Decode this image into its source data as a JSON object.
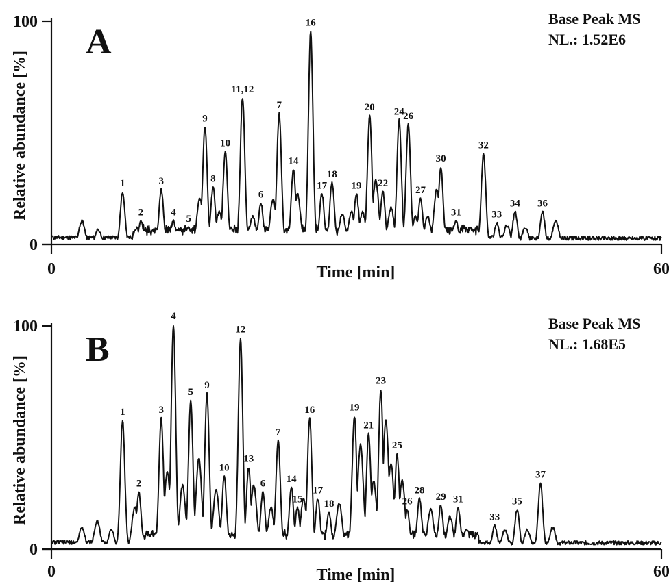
{
  "chart_data": [
    {
      "type": "line",
      "panel": "A",
      "info_lines": [
        "Base Peak MS",
        "NL.: 1.52E6"
      ],
      "xlabel": "Time [min]",
      "ylabel": "Relative abundance [%]",
      "xlim": [
        0,
        60
      ],
      "ylim": [
        0,
        100
      ],
      "x_ticks": [
        "0",
        "60"
      ],
      "y_ticks": [
        "0",
        "100"
      ],
      "grid": false,
      "peaks": [
        {
          "label": "1",
          "x": 7.0,
          "y": 23
        },
        {
          "label": "2",
          "x": 8.8,
          "y": 10
        },
        {
          "label": "3",
          "x": 10.8,
          "y": 24
        },
        {
          "label": "4",
          "x": 12.0,
          "y": 10
        },
        {
          "label": "5",
          "x": 13.5,
          "y": 7
        },
        {
          "label": "9",
          "x": 15.1,
          "y": 52
        },
        {
          "label": "8",
          "x": 15.9,
          "y": 25
        },
        {
          "label": "10",
          "x": 17.1,
          "y": 41
        },
        {
          "label": "11,12",
          "x": 18.8,
          "y": 65
        },
        {
          "label": "6",
          "x": 20.6,
          "y": 18
        },
        {
          "label": "7",
          "x": 22.4,
          "y": 58
        },
        {
          "label": "14",
          "x": 23.8,
          "y": 33
        },
        {
          "label": "16",
          "x": 25.5,
          "y": 95
        },
        {
          "label": "17",
          "x": 26.6,
          "y": 22
        },
        {
          "label": "18",
          "x": 27.6,
          "y": 27
        },
        {
          "label": "19",
          "x": 30.0,
          "y": 22
        },
        {
          "label": "20",
          "x": 31.3,
          "y": 57
        },
        {
          "label": "22",
          "x": 32.6,
          "y": 23
        },
        {
          "label": "24",
          "x": 34.2,
          "y": 55
        },
        {
          "label": "26",
          "x": 35.1,
          "y": 53
        },
        {
          "label": "27",
          "x": 36.3,
          "y": 20
        },
        {
          "label": "30",
          "x": 38.3,
          "y": 34
        },
        {
          "label": "31",
          "x": 39.8,
          "y": 10
        },
        {
          "label": "32",
          "x": 42.5,
          "y": 40
        },
        {
          "label": "33",
          "x": 43.8,
          "y": 9
        },
        {
          "label": "34",
          "x": 45.6,
          "y": 14
        },
        {
          "label": "36",
          "x": 48.3,
          "y": 14
        }
      ],
      "minor_peaks": [
        {
          "x": 3.0,
          "y": 10
        },
        {
          "x": 4.6,
          "y": 6
        },
        {
          "x": 16.5,
          "y": 14
        },
        {
          "x": 14.6,
          "y": 20
        },
        {
          "x": 19.8,
          "y": 12
        },
        {
          "x": 21.8,
          "y": 20
        },
        {
          "x": 24.2,
          "y": 22
        },
        {
          "x": 28.6,
          "y": 13
        },
        {
          "x": 29.5,
          "y": 14
        },
        {
          "x": 30.6,
          "y": 14
        },
        {
          "x": 31.9,
          "y": 28
        },
        {
          "x": 33.4,
          "y": 16
        },
        {
          "x": 35.8,
          "y": 12
        },
        {
          "x": 37.0,
          "y": 12
        },
        {
          "x": 37.9,
          "y": 24
        },
        {
          "x": 44.8,
          "y": 8
        },
        {
          "x": 46.6,
          "y": 7
        },
        {
          "x": 49.6,
          "y": 10
        }
      ]
    },
    {
      "type": "line",
      "panel": "B",
      "info_lines": [
        "Base Peak MS",
        "NL.: 1.68E5"
      ],
      "xlabel": "Time [min]",
      "ylabel": "Relative abundance [%]",
      "xlim": [
        0,
        60
      ],
      "ylim": [
        0,
        100
      ],
      "x_ticks": [
        "0",
        "60"
      ],
      "y_ticks": [
        "0",
        "100"
      ],
      "grid": false,
      "peaks": [
        {
          "label": "1",
          "x": 7.0,
          "y": 57
        },
        {
          "label": "2",
          "x": 8.6,
          "y": 25
        },
        {
          "label": "3",
          "x": 10.8,
          "y": 58
        },
        {
          "label": "4",
          "x": 12.0,
          "y": 100
        },
        {
          "label": "5",
          "x": 13.7,
          "y": 66
        },
        {
          "label": "9",
          "x": 15.3,
          "y": 69
        },
        {
          "label": "10",
          "x": 17.0,
          "y": 32
        },
        {
          "label": "12",
          "x": 18.6,
          "y": 94
        },
        {
          "label": "13",
          "x": 19.4,
          "y": 36
        },
        {
          "label": "6",
          "x": 20.8,
          "y": 25
        },
        {
          "label": "7",
          "x": 22.3,
          "y": 48
        },
        {
          "label": "14",
          "x": 23.6,
          "y": 27
        },
        {
          "label": "15",
          "x": 24.2,
          "y": 18
        },
        {
          "label": "16",
          "x": 25.4,
          "y": 58
        },
        {
          "label": "17",
          "x": 26.2,
          "y": 22
        },
        {
          "label": "18",
          "x": 27.3,
          "y": 16
        },
        {
          "label": "19",
          "x": 29.8,
          "y": 59
        },
        {
          "label": "21",
          "x": 31.2,
          "y": 51
        },
        {
          "label": "23",
          "x": 32.4,
          "y": 71
        },
        {
          "label": "25",
          "x": 34.0,
          "y": 42
        },
        {
          "label": "26",
          "x": 35.0,
          "y": 17
        },
        {
          "label": "28",
          "x": 36.2,
          "y": 22
        },
        {
          "label": "29",
          "x": 38.3,
          "y": 19
        },
        {
          "label": "31",
          "x": 40.0,
          "y": 18
        },
        {
          "label": "33",
          "x": 43.6,
          "y": 10
        },
        {
          "label": "35",
          "x": 45.8,
          "y": 17
        },
        {
          "label": "37",
          "x": 48.1,
          "y": 29
        }
      ],
      "minor_peaks": [
        {
          "x": 3.0,
          "y": 9
        },
        {
          "x": 4.5,
          "y": 12
        },
        {
          "x": 5.9,
          "y": 8
        },
        {
          "x": 8.2,
          "y": 18
        },
        {
          "x": 11.4,
          "y": 34
        },
        {
          "x": 12.9,
          "y": 28
        },
        {
          "x": 14.5,
          "y": 40
        },
        {
          "x": 16.2,
          "y": 26
        },
        {
          "x": 19.9,
          "y": 28
        },
        {
          "x": 21.6,
          "y": 18
        },
        {
          "x": 24.8,
          "y": 22
        },
        {
          "x": 28.3,
          "y": 20
        },
        {
          "x": 30.4,
          "y": 46
        },
        {
          "x": 31.7,
          "y": 30
        },
        {
          "x": 32.9,
          "y": 57
        },
        {
          "x": 33.4,
          "y": 38
        },
        {
          "x": 34.5,
          "y": 30
        },
        {
          "x": 37.3,
          "y": 17
        },
        {
          "x": 39.2,
          "y": 14
        },
        {
          "x": 40.8,
          "y": 8
        },
        {
          "x": 44.6,
          "y": 8
        },
        {
          "x": 46.8,
          "y": 8
        },
        {
          "x": 49.3,
          "y": 9
        }
      ]
    }
  ]
}
